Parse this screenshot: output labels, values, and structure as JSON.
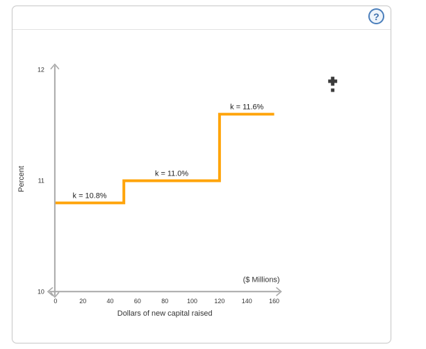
{
  "header": {
    "help_label": "?"
  },
  "colors": {
    "line_orange": "#ffa40a",
    "axis_gray": "#a8a8a8",
    "help_blue": "#4a7ebb",
    "cursor_dark": "#3b3b3b"
  },
  "chart_data": {
    "type": "line",
    "subtype": "step",
    "title": "",
    "xlabel": "Dollars of new capital raised",
    "ylabel": "Percent",
    "x_unit_label": "($ Millions)",
    "xlim": [
      0,
      160
    ],
    "ylim": [
      10,
      12
    ],
    "x_ticks": [
      0,
      20,
      40,
      60,
      80,
      100,
      120,
      140,
      160
    ],
    "y_ticks": [
      10,
      11,
      12
    ],
    "grid": false,
    "legend": false,
    "line_color": "#ffa40a",
    "steps": [
      {
        "x_from": 0,
        "x_to": 50,
        "k": 10.8,
        "label": "k = 10.8%"
      },
      {
        "x_from": 50,
        "x_to": 120,
        "k": 11.0,
        "label": "k = 11.0%"
      },
      {
        "x_from": 120,
        "x_to": 160,
        "k": 11.6,
        "label": "k = 11.6%"
      }
    ]
  }
}
